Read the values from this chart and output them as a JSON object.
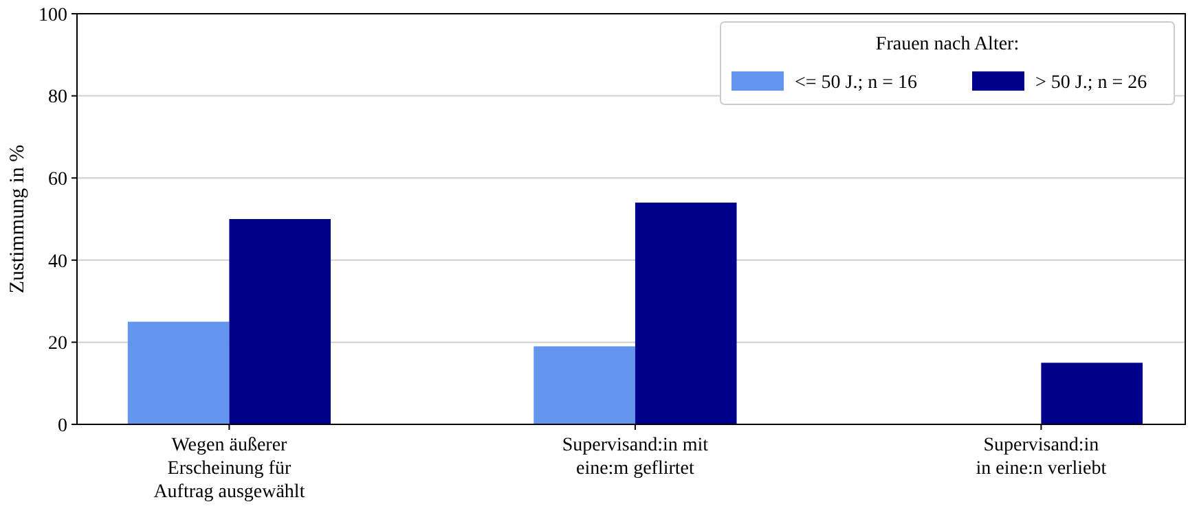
{
  "chart_data": {
    "type": "bar",
    "ylabel": "Zustimmung in %",
    "legend_title": "Frauen nach Alter:",
    "categories": [
      "Wegen äußerer\nErscheinung für\nAuftrag ausgewählt",
      "Supervisand:in mit\neine:m geflirtet",
      "Supervisand:in\nin eine:n verliebt"
    ],
    "series": [
      {
        "name": "<= 50 J.; n = 16",
        "color": "#6495ed",
        "values": [
          25,
          19,
          0
        ]
      },
      {
        "name": "> 50 J.; n = 26",
        "color": "#00008b",
        "values": [
          50,
          54,
          15
        ]
      }
    ],
    "ylim": [
      0,
      100
    ],
    "yticks": [
      0,
      20,
      40,
      60,
      80,
      100
    ],
    "grid": "y",
    "legend": "top right"
  }
}
